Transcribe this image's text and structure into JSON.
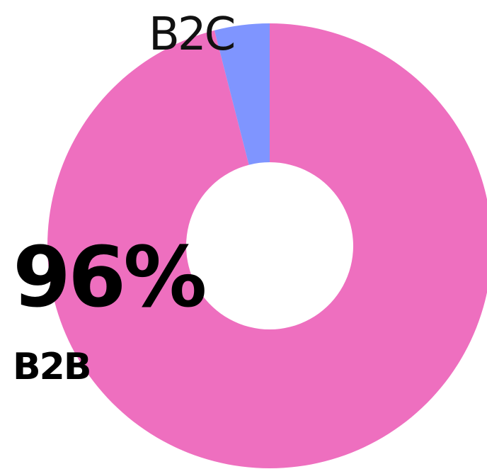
{
  "chart_data": {
    "type": "donut",
    "categories": [
      "B2B",
      "B2C"
    ],
    "values": [
      96,
      4
    ],
    "value_labels": [
      "96%",
      null
    ],
    "colors": [
      "#ee6fbf",
      "#7f95ff"
    ]
  }
}
